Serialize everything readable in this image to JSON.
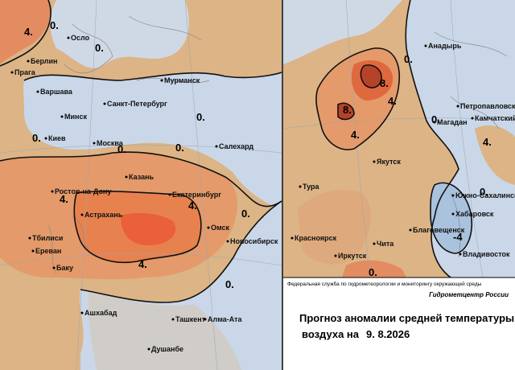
{
  "left_map": {
    "cities": [
      "Осло",
      "Берлин",
      "Прага",
      "Варшава",
      "Санкт-Петербург",
      "Мурманск",
      "Минск",
      "Киев",
      "Москва",
      "Салехард",
      "Казань",
      "Ростов-на-Дону",
      "Екатеринбург",
      "Астрахань",
      "Тбилиси",
      "Ереван",
      "Баку",
      "Омск",
      "Новосибирск",
      "Ашхабад",
      "Ташкент",
      "Алма-Ата",
      "Душанбе"
    ],
    "contour_labels": [
      "4.",
      "0.",
      "0.",
      "0.",
      "0.",
      "0.",
      "0.",
      "4.",
      "4.",
      "0.",
      "4.",
      "0."
    ]
  },
  "right_map": {
    "cities": [
      "Анадырь",
      "Петропавловск",
      "Камчатский",
      "Магадан",
      "Якутск",
      "Южно-Сахалинск",
      "Хабаровск",
      "Благовещенск",
      "Владивосток",
      "Тура",
      "Красноярск",
      "Иркутск",
      "Чита"
    ],
    "contour_labels": [
      "8.",
      "8.",
      "4.",
      "4.",
      "0.",
      "0.",
      "4.",
      "0.",
      "-4",
      "0."
    ]
  },
  "footer": {
    "agency": "Федеральная служба по гидрометеорологии и мониторингу окружающей среды",
    "center": "Гидрометцентр России"
  },
  "title": {
    "line1": "Прогноз аномалии средней температуры",
    "line2": "воздуха на",
    "date": "9. 8.2026"
  }
}
